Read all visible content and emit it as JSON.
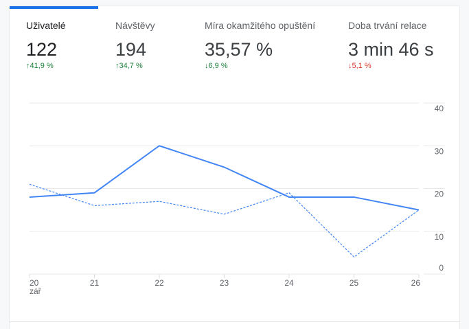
{
  "metrics": [
    {
      "label": "Uživatelé",
      "value": "122",
      "change": "41,9 %",
      "direction": "up"
    },
    {
      "label": "Návštěvy",
      "value": "194",
      "change": "34,7 %",
      "direction": "up"
    },
    {
      "label": "Míra okamžitého opuštění",
      "value": "35,57 %",
      "change": "6,9 %",
      "direction": "down"
    },
    {
      "label": "Doba trvání relace",
      "value": "3 min 46 s",
      "change": "5,1 %",
      "direction": "down"
    }
  ],
  "colors": {
    "accent": "#1a73e8",
    "line": "#4285f4",
    "up": "#188038",
    "down": "#d93025"
  },
  "chart_data": {
    "type": "line",
    "categories": [
      "20",
      "21",
      "22",
      "23",
      "24",
      "25",
      "26"
    ],
    "x_sublabel": "zář",
    "y_ticks": [
      "0",
      "10",
      "20",
      "30",
      "40"
    ],
    "ylim": [
      0,
      40
    ],
    "grid": true,
    "series": [
      {
        "style": "solid",
        "values": [
          18,
          19,
          30,
          25,
          18,
          18,
          15
        ]
      },
      {
        "style": "dashed",
        "values": [
          21,
          16,
          17,
          14,
          19,
          4,
          15
        ]
      }
    ]
  }
}
